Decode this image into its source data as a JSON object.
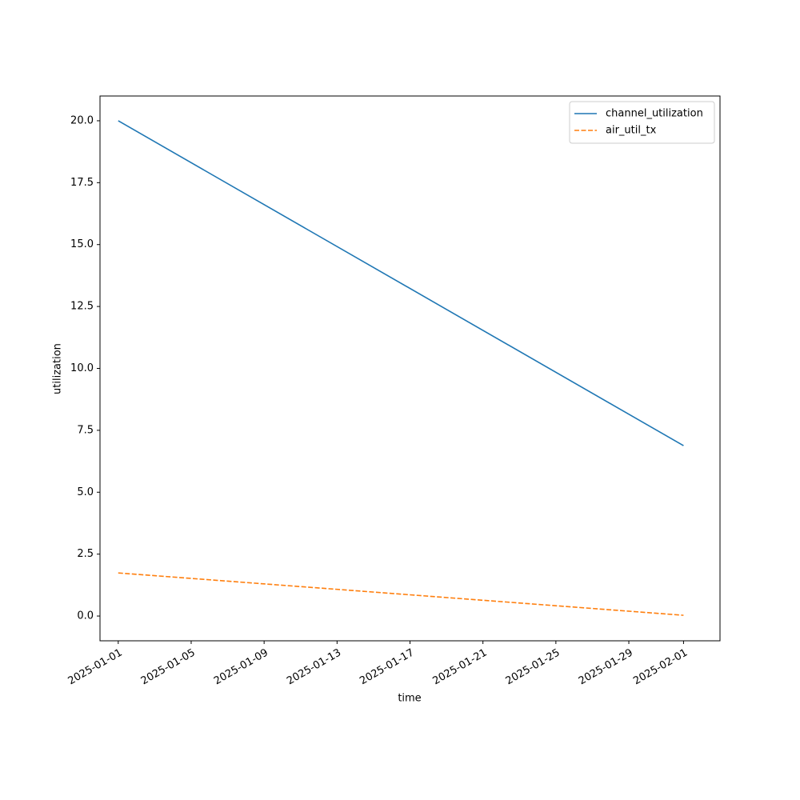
{
  "chart_data": {
    "type": "line",
    "xlabel": "time",
    "ylabel": "utilization",
    "x": [
      "2025-01-01",
      "2025-02-01"
    ],
    "series": [
      {
        "name": "channel_utilization",
        "color": "#1f77b4",
        "linestyle": "solid",
        "values": [
          20.0,
          6.88
        ]
      },
      {
        "name": "air_util_tx",
        "color": "#ff7f0e",
        "linestyle": "dashed",
        "values": [
          1.74,
          0.03
        ]
      }
    ],
    "xlim": [
      "2024-12-31",
      "2025-02-03"
    ],
    "xticks": [
      "2025-01-01",
      "2025-01-05",
      "2025-01-09",
      "2025-01-13",
      "2025-01-17",
      "2025-01-21",
      "2025-01-25",
      "2025-01-29",
      "2025-02-01"
    ],
    "ylim": [
      -1.0,
      21.0
    ],
    "yticks": [
      {
        "value": 0,
        "label": "0.0"
      },
      2.5,
      {
        "value": 5,
        "label": "5.0"
      },
      7.5,
      {
        "value": 10,
        "label": "10.0"
      },
      12.5,
      {
        "value": 15,
        "label": "15.0"
      },
      17.5,
      {
        "value": 20,
        "label": "20.0"
      }
    ],
    "legend": "upper right",
    "grid": false
  }
}
